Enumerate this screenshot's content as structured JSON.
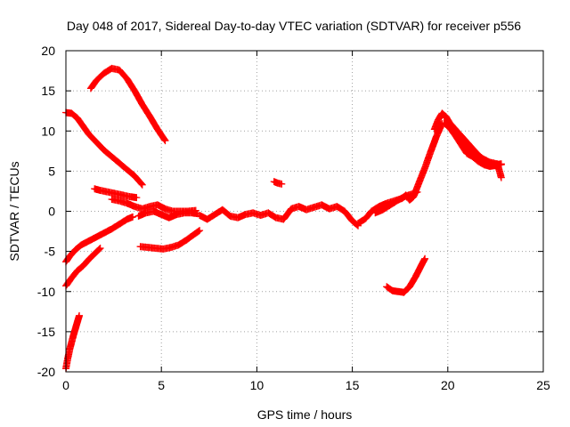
{
  "chart_data": {
    "type": "scatter",
    "title": "Day 048 of 2017, Sidereal Day-to-day VTEC variation (SDTVAR) for receiver p556",
    "xlabel": "GPS time / hours",
    "ylabel": "SDTVAR / TECUs",
    "xlim": [
      0,
      25
    ],
    "ylim": [
      -20,
      20
    ],
    "x_ticks": [
      0,
      5,
      10,
      15,
      20,
      25
    ],
    "y_ticks": [
      -20,
      -15,
      -10,
      -5,
      0,
      5,
      10,
      15,
      20
    ],
    "x_tick_labels": [
      "0",
      "5",
      "10",
      "15",
      "20",
      "25"
    ],
    "y_tick_labels": [
      "-20",
      "-15",
      "-10",
      "-5",
      "0",
      "5",
      "10",
      "15",
      "20"
    ],
    "grid": true,
    "marker": "+",
    "color": "#ff0000",
    "series": [
      {
        "x": [
          1.3,
          1.6,
          2.0,
          2.4,
          2.8,
          3.2,
          3.6,
          4.0,
          4.4,
          4.8,
          5.2
        ],
        "y": [
          15.3,
          16.3,
          17.2,
          17.8,
          17.6,
          16.5,
          15.0,
          13.3,
          11.8,
          10.2,
          8.8
        ]
      },
      {
        "x": [
          0.0,
          0.3,
          0.6,
          0.9,
          1.2,
          1.6,
          2.0,
          2.4,
          2.8,
          3.2,
          3.6,
          4.0
        ],
        "y": [
          12.3,
          12.2,
          11.6,
          10.6,
          9.6,
          8.6,
          7.6,
          6.8,
          6.0,
          5.2,
          4.4,
          3.3
        ]
      },
      {
        "x": [
          1.5,
          1.8,
          2.2,
          2.6,
          3.0,
          3.4,
          3.7
        ],
        "y": [
          2.8,
          2.6,
          2.4,
          2.2,
          2.0,
          1.8,
          1.7
        ]
      },
      {
        "x": [
          2.4,
          2.8,
          3.2,
          3.6,
          4.0,
          4.4,
          4.8,
          5.2,
          5.6,
          6.0,
          6.4,
          6.8
        ],
        "y": [
          1.5,
          1.3,
          1.0,
          0.6,
          0.3,
          0.6,
          0.8,
          0.3,
          0.0,
          0.0,
          0.0,
          0.1
        ]
      },
      {
        "x": [
          0.0,
          0.2,
          0.5,
          0.8,
          1.2,
          1.6,
          2.0,
          2.4,
          2.8,
          3.2,
          3.5
        ],
        "y": [
          -6.3,
          -5.6,
          -4.8,
          -4.2,
          -3.7,
          -3.2,
          -2.7,
          -2.2,
          -1.6,
          -1.0,
          -0.7
        ]
      },
      {
        "x": [
          3.8,
          4.2,
          4.6,
          5.0,
          5.4,
          5.8,
          6.2,
          6.6,
          6.9
        ],
        "y": [
          -0.6,
          -0.2,
          0.0,
          -0.4,
          -0.8,
          -0.4,
          -0.2,
          -0.2,
          -0.3
        ]
      },
      {
        "x": [
          0.0,
          0.3,
          0.6,
          0.9,
          1.2,
          1.5,
          1.8
        ],
        "y": [
          -9.3,
          -8.3,
          -7.4,
          -6.8,
          -6.0,
          -5.3,
          -4.6
        ]
      },
      {
        "x": [
          3.9,
          4.3,
          4.7,
          5.1,
          5.5,
          5.9,
          6.3,
          6.7,
          7.0
        ],
        "y": [
          -4.4,
          -4.5,
          -4.6,
          -4.7,
          -4.5,
          -4.2,
          -3.6,
          -2.9,
          -2.4
        ]
      },
      {
        "x": [
          0.0,
          0.1,
          0.2,
          0.3,
          0.4,
          0.5,
          0.6,
          0.7
        ],
        "y": [
          -19.6,
          -18.3,
          -17.2,
          -16.3,
          -15.4,
          -14.6,
          -13.8,
          -13.0
        ]
      },
      {
        "x": [
          7.0,
          7.4,
          7.8,
          8.2,
          8.6,
          9.0,
          9.4,
          9.8,
          10.2,
          10.6,
          11.0,
          11.4,
          11.8,
          12.2,
          12.6,
          13.0,
          13.4,
          13.8,
          14.2,
          14.6,
          15.0,
          15.3
        ],
        "y": [
          -0.5,
          -1.0,
          -0.4,
          0.2,
          -0.6,
          -0.8,
          -0.4,
          -0.2,
          -0.5,
          -0.2,
          -0.8,
          -1.0,
          0.3,
          0.6,
          0.2,
          0.5,
          0.8,
          0.3,
          0.6,
          0.0,
          -1.2,
          -1.8
        ]
      },
      {
        "x": [
          10.9,
          11.1,
          11.3
        ],
        "y": [
          3.7,
          3.5,
          3.4
        ]
      },
      {
        "x": [
          15.3,
          15.7,
          16.0,
          16.4,
          16.8,
          17.2,
          17.6,
          17.8,
          18.0,
          18.2,
          18.5,
          18.8,
          19.1,
          19.4,
          19.7
        ],
        "y": [
          -1.5,
          -0.9,
          0.0,
          0.6,
          1.0,
          1.3,
          1.6,
          2.0,
          1.4,
          1.8,
          3.6,
          5.4,
          7.4,
          9.3,
          10.9
        ]
      },
      {
        "x": [
          16.2,
          16.6,
          17.0,
          17.4,
          17.8,
          18.2,
          18.4
        ],
        "y": [
          -0.2,
          0.2,
          0.8,
          1.4,
          1.9,
          2.2,
          2.4
        ]
      },
      {
        "x": [
          16.8,
          17.1,
          17.4,
          17.7,
          18.0,
          18.3,
          18.6,
          18.8
        ],
        "y": [
          -9.4,
          -9.9,
          -10.0,
          -10.1,
          -9.4,
          -8.2,
          -6.8,
          -5.9
        ]
      },
      {
        "x": [
          19.3,
          19.5,
          19.7,
          19.9,
          20.1,
          20.4,
          20.7,
          21.0,
          21.3,
          21.6,
          21.9,
          22.2,
          22.5,
          22.8
        ],
        "y": [
          10.2,
          11.4,
          12.2,
          11.8,
          11.0,
          10.2,
          9.4,
          8.6,
          7.8,
          7.0,
          6.4,
          6.0,
          5.8,
          5.9
        ]
      },
      {
        "x": [
          19.8,
          20.1,
          20.4,
          20.7,
          21.0,
          21.3,
          21.6,
          21.9,
          22.2,
          22.5,
          22.8
        ],
        "y": [
          11.0,
          10.4,
          9.4,
          8.3,
          7.2,
          6.8,
          6.2,
          5.8,
          5.6,
          5.7,
          5.8
        ]
      },
      {
        "x": [
          20.2,
          20.6,
          21.0,
          21.4,
          21.8,
          22.2,
          22.6,
          22.8
        ],
        "y": [
          10.2,
          9.0,
          7.9,
          7.2,
          6.6,
          6.1,
          5.9,
          4.2
        ]
      }
    ]
  }
}
